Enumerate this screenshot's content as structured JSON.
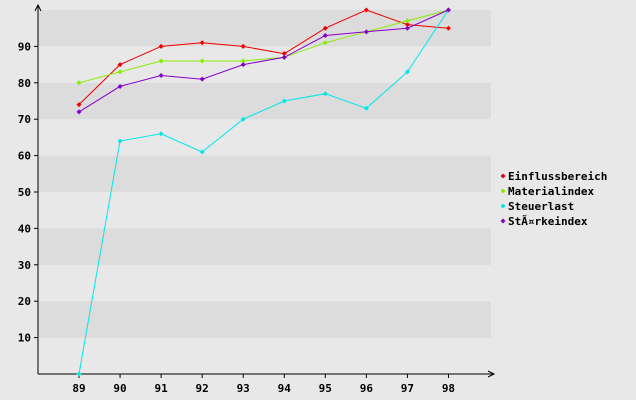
{
  "chart_data": {
    "type": "line",
    "categories": [
      "89",
      "90",
      "91",
      "92",
      "93",
      "94",
      "95",
      "96",
      "97",
      "98"
    ],
    "y_ticks": [
      "10",
      "20",
      "30",
      "40",
      "50",
      "60",
      "70",
      "80",
      "90"
    ],
    "ylim": [
      0,
      100
    ],
    "grid": "horizontal bands",
    "legend_position": "right",
    "colors": {
      "background": "#e8e8e8",
      "band_light": "#e8e8e8",
      "band_dark": "#dcdcdc",
      "axis": "#000000"
    },
    "series": [
      {
        "name": "Einflussbereich",
        "color": "#ee0000",
        "values": [
          74,
          85,
          90,
          91,
          90,
          88,
          95,
          100,
          96,
          95
        ]
      },
      {
        "name": "Materialindex",
        "color": "#88ee00",
        "values": [
          80,
          83,
          86,
          86,
          86,
          87,
          91,
          94,
          97,
          100
        ]
      },
      {
        "name": "Steuerlast",
        "color": "#00e8e8",
        "values": [
          0,
          64,
          66,
          61,
          70,
          75,
          77,
          73,
          83,
          100
        ]
      },
      {
        "name": "StÃ¤rkeindex",
        "color": "#8800cc",
        "values": [
          72,
          79,
          82,
          81,
          85,
          87,
          93,
          94,
          95,
          100
        ]
      }
    ]
  }
}
